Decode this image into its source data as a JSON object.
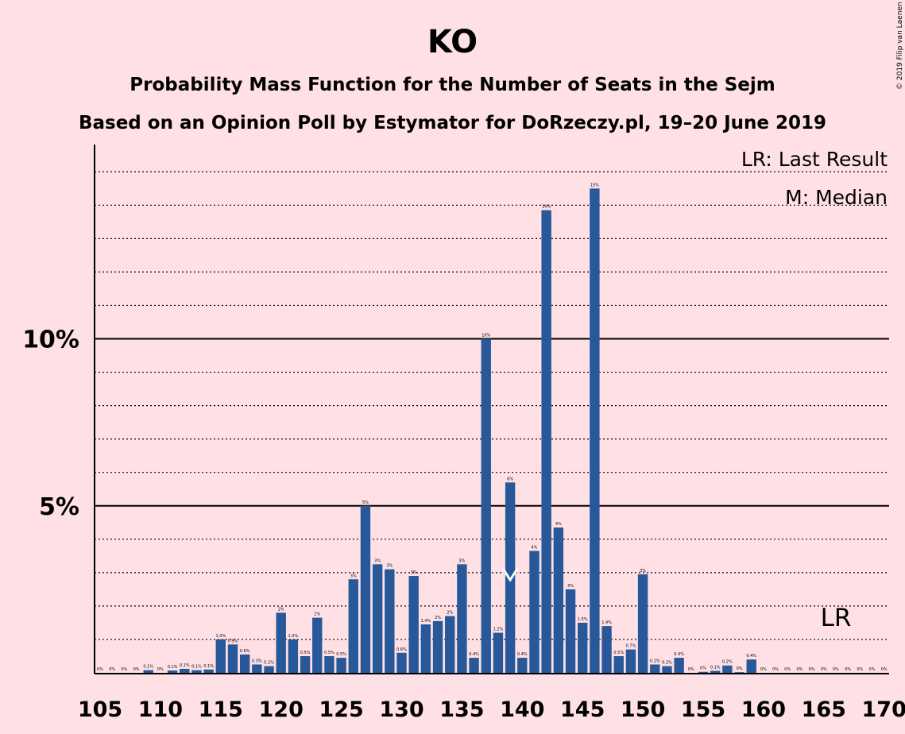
{
  "title": "KO",
  "subtitle1": "Probability Mass Function for the Number of Seats in the Sejm",
  "subtitle2": "Based on an Opinion Poll by Estymator for DoRzeczy.pl, 19–20 June 2019",
  "copyright": "© 2019 Filip van Laenen",
  "legend": {
    "last_result": "LR: Last Result",
    "median": "M: Median"
  },
  "markers": {
    "median_label": "M",
    "median_seat": 139,
    "last_result_label": "LR",
    "last_result_seat": 166
  },
  "colors": {
    "background": "#ffe1e5",
    "bar": "#26589a"
  },
  "chart_data": {
    "type": "bar",
    "title": "KO",
    "xlabel": "",
    "ylabel": "",
    "ylim": [
      0,
      15.8
    ],
    "y_ticks": [
      {
        "value": 5,
        "label": "5%"
      },
      {
        "value": 10,
        "label": "10%"
      }
    ],
    "x_ticks": [
      105,
      110,
      115,
      120,
      125,
      130,
      135,
      140,
      145,
      150,
      155,
      160,
      165,
      170
    ],
    "grid": "dotted every 1%, solid at 5% and 10%",
    "legend_position": "top-right",
    "x": [
      105,
      106,
      107,
      108,
      109,
      110,
      111,
      112,
      113,
      114,
      115,
      116,
      117,
      118,
      119,
      120,
      121,
      122,
      123,
      124,
      125,
      126,
      127,
      128,
      129,
      130,
      131,
      132,
      133,
      134,
      135,
      136,
      137,
      138,
      139,
      140,
      141,
      142,
      143,
      144,
      145,
      146,
      147,
      148,
      149,
      150,
      151,
      152,
      153,
      154,
      155,
      156,
      157,
      158,
      159,
      160,
      161,
      162,
      163,
      164,
      165,
      166,
      167,
      168,
      169,
      170
    ],
    "values": [
      0,
      0,
      0,
      0,
      0.08,
      0,
      0.07,
      0.12,
      0.08,
      0.1,
      1.0,
      0.85,
      0.55,
      0.25,
      0.2,
      1.8,
      1.0,
      0.5,
      1.65,
      0.5,
      0.45,
      2.8,
      5.0,
      3.25,
      3.1,
      0.6,
      2.9,
      1.45,
      1.55,
      1.7,
      3.25,
      0.45,
      10.0,
      1.2,
      5.7,
      0.45,
      3.65,
      13.85,
      4.35,
      2.5,
      1.5,
      14.5,
      1.4,
      0.5,
      0.7,
      2.95,
      0.25,
      0.2,
      0.45,
      0,
      0.03,
      0.06,
      0.22,
      0.02,
      0.4,
      0,
      0,
      0,
      0,
      0,
      0,
      0,
      0,
      0,
      0,
      0
    ],
    "labels": [
      "0%",
      "0%",
      "0%",
      "0%",
      "0.1%",
      "0%",
      "0.1%",
      "0.1%",
      "0.1%",
      "0.1%",
      "1.0%",
      "0.9%",
      "0.6%",
      "0.3%",
      "0.2%",
      "2%",
      "1.0%",
      "0.5%",
      "2%",
      "0.5%",
      "0.5%",
      "3%",
      "5%",
      "3%",
      "3%",
      "0.6%",
      "3%",
      "1.4%",
      "2%",
      "2%",
      "3%",
      "0.4%",
      "10%",
      "1.2%",
      "6%",
      "0.4%",
      "4%",
      "14%",
      "4%",
      "3%",
      "1.5%",
      "15%",
      "1.4%",
      "0.5%",
      "0.7%",
      "3%",
      "0.2%",
      "0.2%",
      "0.4%",
      "0%",
      "0%",
      "0.1%",
      "0.2%",
      "0%",
      "0.4%",
      "0%",
      "0%",
      "0%",
      "0%",
      "0%",
      "0%",
      "0%",
      "0%",
      "0%",
      "0%",
      "0%"
    ]
  }
}
